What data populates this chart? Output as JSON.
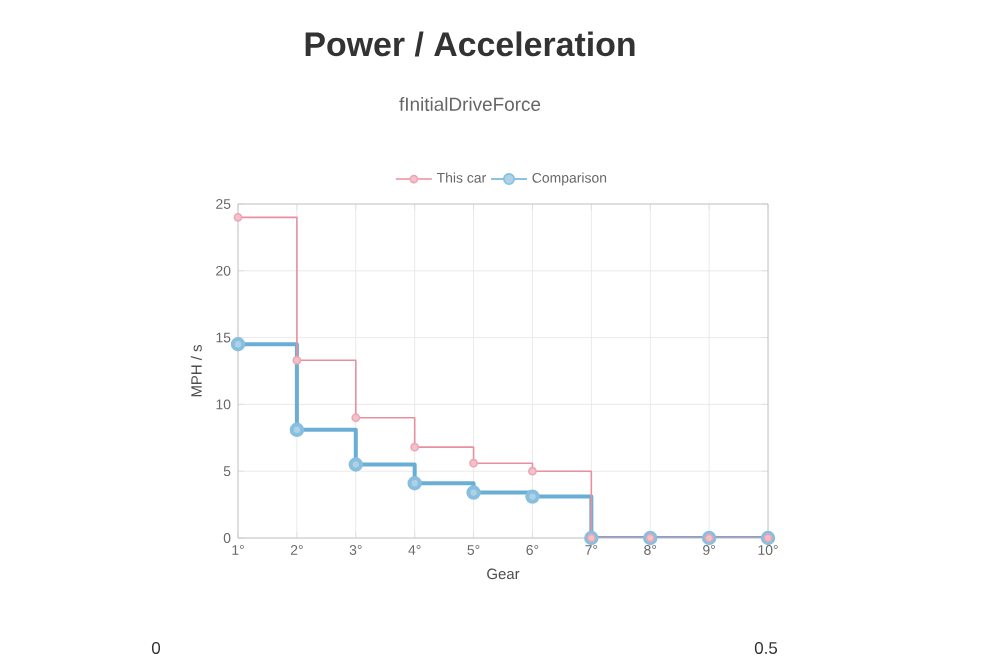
{
  "chart_data": {
    "type": "step",
    "title": "Power / Acceleration",
    "subtitle": "fInitialDriveForce",
    "xlabel": "Gear",
    "ylabel": "MPH / s",
    "categories": [
      "1°",
      "2°",
      "3°",
      "4°",
      "5°",
      "6°",
      "7°",
      "8°",
      "9°",
      "10°"
    ],
    "series": [
      {
        "name": "This car",
        "color": "#e8909f",
        "values": [
          24,
          13.3,
          9,
          6.8,
          5.6,
          5,
          0,
          0,
          0,
          0
        ]
      },
      {
        "name": "Comparison",
        "color": "#6aaed6",
        "values": [
          14.5,
          8.1,
          5.5,
          4.1,
          3.4,
          3.1,
          0,
          0,
          0,
          0
        ]
      }
    ],
    "ylim": [
      0,
      25
    ],
    "yticks": [
      0,
      5,
      10,
      15,
      20,
      25
    ],
    "grid": true,
    "legend": "top",
    "marker": "circle",
    "annotations": [
      "0",
      "0.5"
    ]
  }
}
